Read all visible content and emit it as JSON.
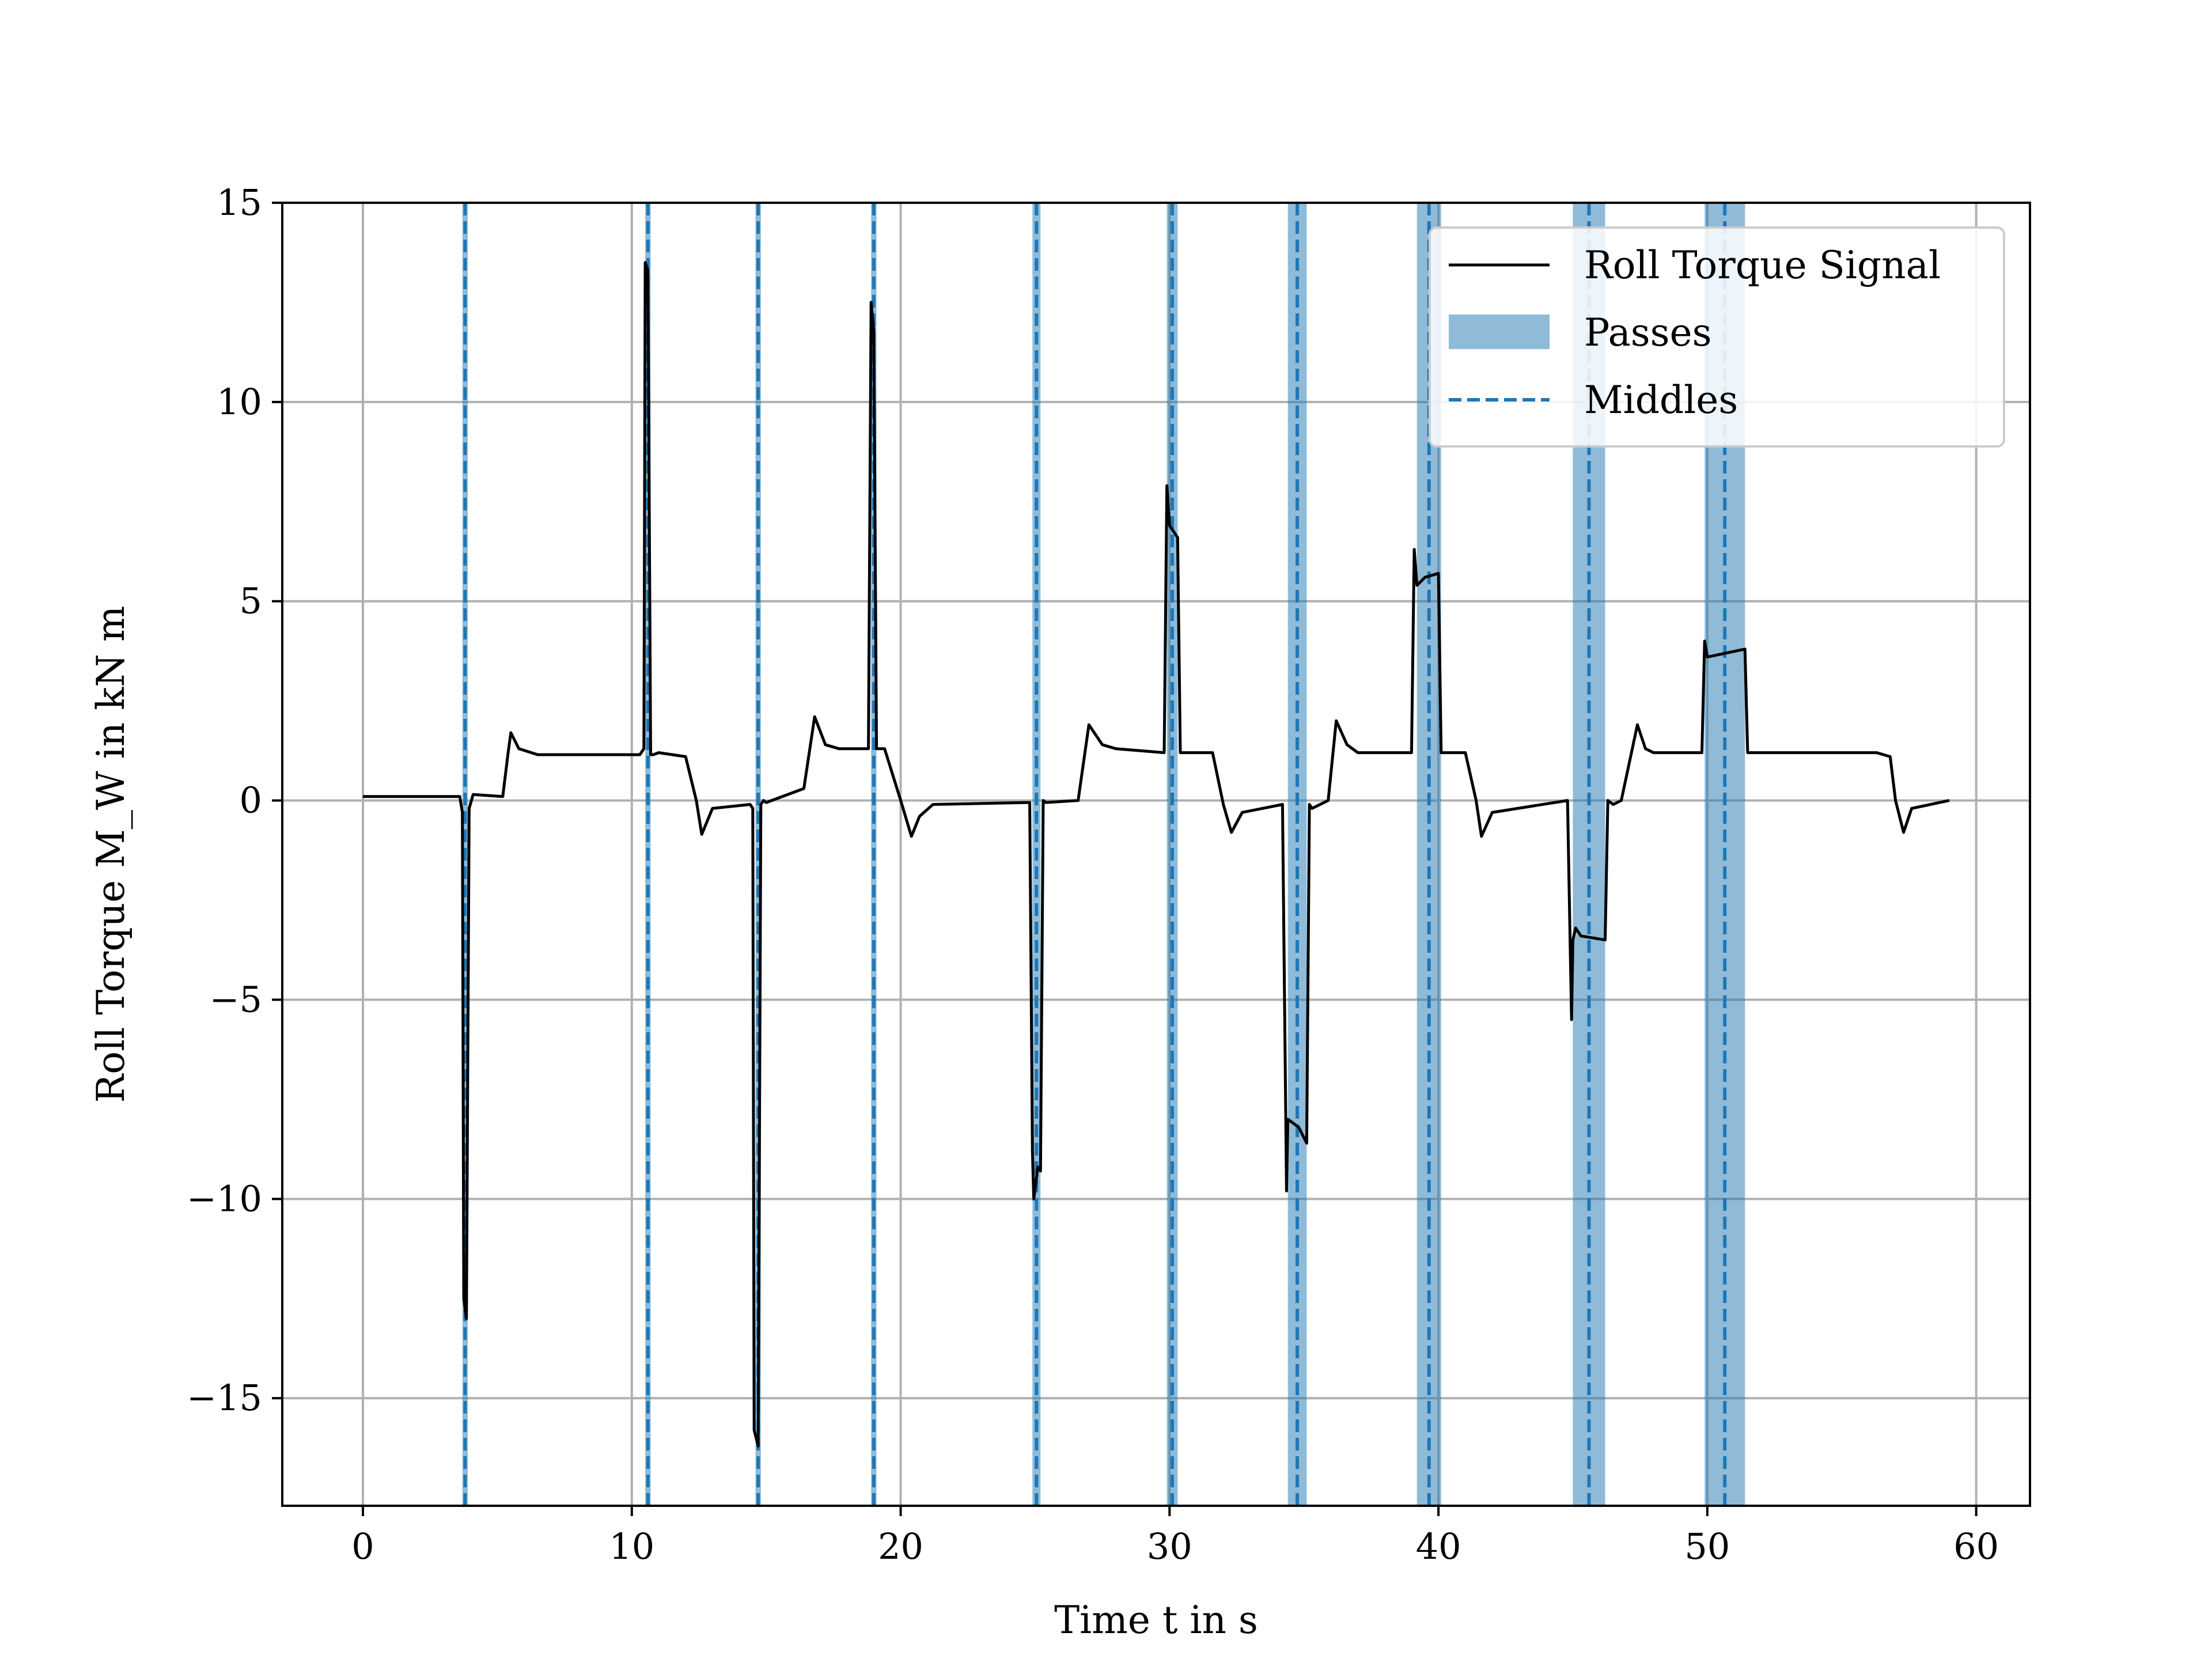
{
  "chart_data": {
    "type": "line",
    "xlabel": "Time t in s",
    "ylabel": "Roll Torque M_W in kN m",
    "xlim": [
      -3,
      62
    ],
    "ylim": [
      -17.7,
      15
    ],
    "xticks": [
      0,
      10,
      20,
      30,
      40,
      50,
      60
    ],
    "yticks": [
      -15,
      -10,
      -5,
      0,
      5,
      10,
      15
    ],
    "xtick_labels": [
      "0",
      "10",
      "20",
      "30",
      "40",
      "50",
      "60"
    ],
    "ytick_labels": [
      "−15",
      "−10",
      "−5",
      "0",
      "5",
      "10",
      "15"
    ],
    "grid": true,
    "legend_position": "top-right",
    "legend": [
      "Roll Torque Signal",
      "Passes",
      "Middles"
    ],
    "colors": {
      "signal": "#000000",
      "passes": "#1f77b4",
      "middles": "#1f77b4"
    },
    "passes": [
      {
        "start": 3.7,
        "end": 3.9
      },
      {
        "start": 10.5,
        "end": 10.7
      },
      {
        "start": 14.6,
        "end": 14.8
      },
      {
        "start": 18.9,
        "end": 19.1
      },
      {
        "start": 24.9,
        "end": 25.2
      },
      {
        "start": 29.9,
        "end": 30.3
      },
      {
        "start": 34.4,
        "end": 35.1
      },
      {
        "start": 39.2,
        "end": 40.1
      },
      {
        "start": 45.0,
        "end": 46.2
      },
      {
        "start": 49.9,
        "end": 51.4
      }
    ],
    "middles": [
      3.8,
      10.6,
      14.7,
      19.0,
      25.05,
      30.1,
      34.75,
      39.65,
      45.6,
      50.65
    ],
    "series": [
      {
        "name": "Roll Torque Signal",
        "x": [
          0,
          3.6,
          3.7,
          3.75,
          3.85,
          3.95,
          4.1,
          5.2,
          5.4,
          5.5,
          5.8,
          6.5,
          10.3,
          10.45,
          10.5,
          10.6,
          10.7,
          10.8,
          11.0,
          12.0,
          12.4,
          12.6,
          13.0,
          14.4,
          14.5,
          14.55,
          14.7,
          14.8,
          14.9,
          15.0,
          16.4,
          16.8,
          17.2,
          17.7,
          18.8,
          18.9,
          19.0,
          19.1,
          19.2,
          19.4,
          20.0,
          20.4,
          20.7,
          21.2,
          24.8,
          24.9,
          24.95,
          25.1,
          25.2,
          25.3,
          25.4,
          26.6,
          27.0,
          27.5,
          28.0,
          29.8,
          29.9,
          30.0,
          30.3,
          30.4,
          30.5,
          31.6,
          32.0,
          32.3,
          32.7,
          34.2,
          34.35,
          34.4,
          34.8,
          35.1,
          35.2,
          35.3,
          35.9,
          36.2,
          36.6,
          37.0,
          39.0,
          39.1,
          39.2,
          39.5,
          40.0,
          40.1,
          40.3,
          41.0,
          41.4,
          41.6,
          42.0,
          44.8,
          44.95,
          45.0,
          45.1,
          45.3,
          46.2,
          46.3,
          46.5,
          46.8,
          47.4,
          47.7,
          48.0,
          49.8,
          49.9,
          50.0,
          51.4,
          51.5,
          52.0,
          56.3,
          56.8,
          57.0,
          57.3,
          57.6,
          59.0
        ],
        "y": [
          0.1,
          0.1,
          -0.3,
          -12.5,
          -13.0,
          -0.2,
          0.15,
          0.1,
          1.2,
          1.7,
          1.3,
          1.15,
          1.15,
          1.3,
          13.5,
          13.3,
          1.15,
          1.15,
          1.2,
          1.1,
          0.0,
          -0.85,
          -0.2,
          -0.1,
          -0.2,
          -15.8,
          -16.2,
          -0.1,
          0.0,
          -0.05,
          0.3,
          2.1,
          1.4,
          1.3,
          1.3,
          12.5,
          11.8,
          1.3,
          1.3,
          1.3,
          0.0,
          -0.9,
          -0.4,
          -0.1,
          -0.05,
          -8.8,
          -10.0,
          -9.2,
          -9.3,
          0.0,
          -0.05,
          0.0,
          1.9,
          1.4,
          1.3,
          1.2,
          7.9,
          6.9,
          6.6,
          1.2,
          1.2,
          1.2,
          -0.1,
          -0.8,
          -0.3,
          -0.1,
          -9.8,
          -8.0,
          -8.2,
          -8.6,
          -0.1,
          -0.2,
          0.0,
          2.0,
          1.4,
          1.2,
          1.2,
          6.3,
          5.4,
          5.6,
          5.7,
          1.2,
          1.2,
          1.2,
          0.0,
          -0.9,
          -0.3,
          0.0,
          -5.5,
          -3.5,
          -3.2,
          -3.4,
          -3.5,
          0.0,
          -0.1,
          0.0,
          1.9,
          1.3,
          1.2,
          1.2,
          4.0,
          3.6,
          3.8,
          1.2,
          1.2,
          1.2,
          1.1,
          0.0,
          -0.8,
          -0.2,
          0.0
        ]
      }
    ]
  }
}
